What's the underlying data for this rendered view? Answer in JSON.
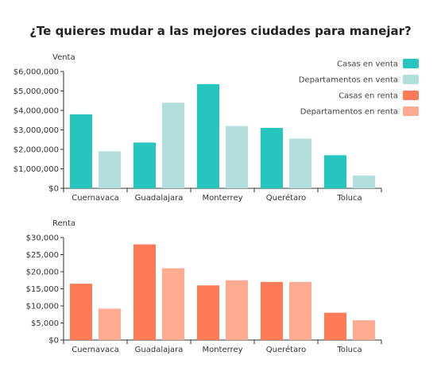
{
  "title": "¿Te quieres mudar a las mejores ciudades para manejar?",
  "colors": {
    "casas_venta": "#26c6bf",
    "deptos_venta": "#b2dfdb",
    "casas_renta": "#ff7b57",
    "deptos_renta": "#ffab91",
    "axis": "#333333"
  },
  "chart_data": [
    {
      "type": "bar",
      "ylabel": "Venta",
      "categories": [
        "Cuernavaca",
        "Guadalajara",
        "Monterrey",
        "Querétaro",
        "Toluca"
      ],
      "series": [
        {
          "name": "Casas en venta",
          "values": [
            3800000,
            2350000,
            5350000,
            3100000,
            1700000
          ]
        },
        {
          "name": "Departamentos en venta",
          "values": [
            1900000,
            4400000,
            3200000,
            2550000,
            650000
          ]
        }
      ],
      "ylim": [
        0,
        6000000
      ],
      "yticks": [
        0,
        1000000,
        2000000,
        3000000,
        4000000,
        5000000,
        6000000
      ],
      "ytick_labels": [
        "$0",
        "$1,000,000",
        "$2,000,000",
        "$3,000,000",
        "$4,000,000",
        "$5,000,000",
        "$6,000,000"
      ],
      "legend_position": "top-right",
      "grid": false
    },
    {
      "type": "bar",
      "ylabel": "Renta",
      "categories": [
        "Cuernavaca",
        "Guadalajara",
        "Monterrey",
        "Querétaro",
        "Toluca"
      ],
      "series": [
        {
          "name": "Casas en renta",
          "values": [
            16500,
            28000,
            16000,
            17000,
            8000
          ]
        },
        {
          "name": "Departamentos en renta",
          "values": [
            9200,
            21000,
            17500,
            17000,
            5800
          ]
        }
      ],
      "ylim": [
        0,
        30000
      ],
      "yticks": [
        0,
        5000,
        10000,
        15000,
        20000,
        25000,
        30000
      ],
      "ytick_labels": [
        "$0",
        "$5,000",
        "$10,000",
        "$15,000",
        "$20,000",
        "$25,000",
        "$30,000"
      ],
      "grid": false
    }
  ],
  "legend": [
    {
      "label": "Casas en venta",
      "color_key": "casas_venta"
    },
    {
      "label": "Departamentos en venta",
      "color_key": "deptos_venta"
    },
    {
      "label": "Casas en renta",
      "color_key": "casas_renta"
    },
    {
      "label": "Departamentos en renta",
      "color_key": "deptos_renta"
    }
  ]
}
